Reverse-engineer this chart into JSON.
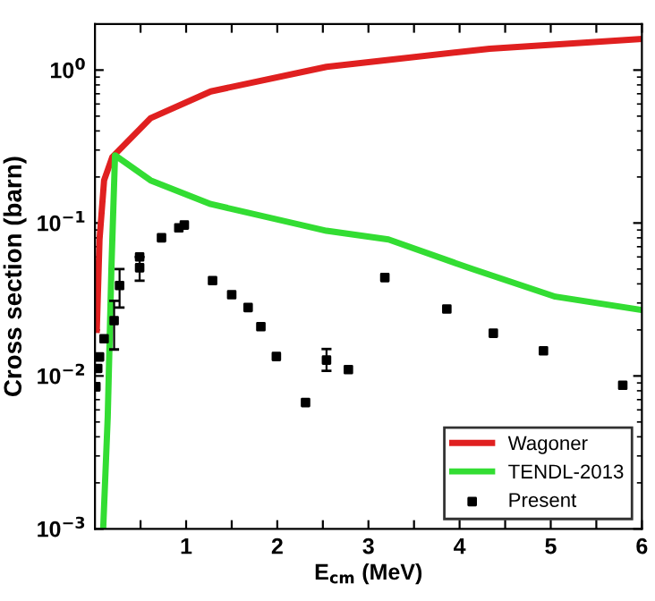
{
  "chart_data": {
    "type": "line",
    "xlabel": "E$_{cm}$ (MeV)",
    "ylabel": "Cross section (barn)",
    "log": "y",
    "xlim": [
      0,
      6
    ],
    "xticks": [
      {
        "value": 0.5,
        "label": null
      },
      1,
      {
        "value": 1.5,
        "label": null
      },
      2,
      {
        "value": 2.5,
        "label": null
      },
      3,
      {
        "value": 3.5,
        "label": null
      },
      4,
      {
        "value": 4.5,
        "label": null
      },
      5,
      {
        "value": 5.5,
        "label": null
      },
      6
    ],
    "ylim": [
      0.001,
      2
    ],
    "yticks": [
      {
        "value": 0.001,
        "label": "10$^{−3}$"
      },
      {
        "value": 0.01,
        "label": "10$^{−2}$"
      },
      {
        "value": 0.1,
        "label": "10$^{−1}$"
      },
      {
        "value": 1,
        "label": "10$^{0}$"
      }
    ],
    "grid": false,
    "legend": "bottom right",
    "series": [
      {
        "name": "Wagoner",
        "color": "#e02020",
        "x": [
          0.02,
          0.05,
          0.1,
          0.19,
          0.61,
          1.27,
          2.54,
          4.33,
          6
        ],
        "values": [
          0.02,
          0.078,
          0.19,
          0.27,
          0.485,
          0.725,
          1.05,
          1.38,
          1.6
        ]
      },
      {
        "name": "TENDL-2013",
        "color": "#33dd33",
        "x": [
          0.09,
          0.14,
          0.18,
          0.22,
          0.61,
          1.27,
          2.54,
          3.22,
          4.14,
          5.05,
          6
        ],
        "values": [
          0.001,
          0.0054,
          0.05,
          0.277,
          0.19,
          0.133,
          0.089,
          0.078,
          0.05,
          0.033,
          0.027
        ]
      },
      {
        "name": "Present",
        "color": "#000000",
        "type": "scatter",
        "marker": "square",
        "x": [
          0.01,
          0.03,
          0.05,
          0.1,
          0.21,
          0.27,
          0.49,
          0.49,
          0.73,
          0.92,
          0.98,
          1.29,
          1.5,
          1.68,
          1.82,
          1.99,
          2.31,
          2.54,
          2.78,
          3.18,
          3.86,
          4.37,
          4.92,
          5.79
        ],
        "values": [
          0.0085,
          0.0112,
          0.0133,
          0.0175,
          0.023,
          0.039,
          0.06,
          0.051,
          0.08,
          0.093,
          0.097,
          0.042,
          0.034,
          0.028,
          0.021,
          0.0134,
          0.0067,
          0.0127,
          0.011,
          0.044,
          0.0274,
          0.019,
          0.0146,
          0.0087
        ],
        "errors": [
          null,
          null,
          null,
          null,
          [
            0.0149,
            0.031
          ],
          [
            0.028,
            0.05
          ],
          null,
          [
            0.042,
            0.06
          ],
          null,
          null,
          null,
          null,
          null,
          null,
          null,
          null,
          null,
          [
            0.0108,
            0.015
          ],
          null,
          null,
          null,
          null,
          null,
          null
        ]
      }
    ]
  }
}
